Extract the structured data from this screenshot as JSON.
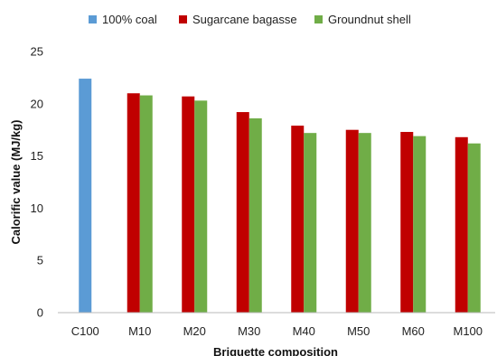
{
  "chart_data": {
    "type": "bar",
    "title": "",
    "xlabel": "Briquette composition",
    "ylabel": "Calorific value (MJ/kg)",
    "ylim": [
      0,
      25
    ],
    "yticks": [
      0,
      5,
      10,
      15,
      20,
      25
    ],
    "grid": false,
    "legend_position": "top",
    "categories": [
      "C100",
      "M10",
      "M20",
      "M30",
      "M40",
      "M50",
      "M60",
      "M100"
    ],
    "series": [
      {
        "name": "100% coal",
        "color": "#5B9BD5",
        "values": [
          22.4,
          null,
          null,
          null,
          null,
          null,
          null,
          null
        ]
      },
      {
        "name": "Sugarcane bagasse",
        "color": "#C00000",
        "values": [
          null,
          21.0,
          20.7,
          19.2,
          17.9,
          17.5,
          17.3,
          16.8
        ]
      },
      {
        "name": "Groundnut shell",
        "color": "#70AD47",
        "values": [
          null,
          20.8,
          20.3,
          18.6,
          17.2,
          17.2,
          16.9,
          16.2
        ]
      }
    ]
  }
}
